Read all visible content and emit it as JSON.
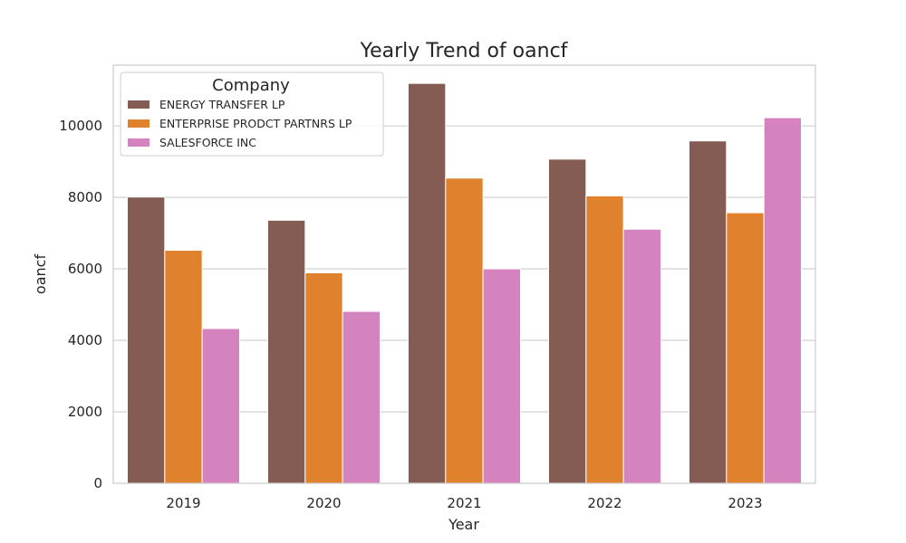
{
  "chart_data": {
    "type": "bar",
    "title": "Yearly Trend of oancf",
    "xlabel": "Year",
    "ylabel": "oancf",
    "categories": [
      "2019",
      "2020",
      "2021",
      "2022",
      "2023"
    ],
    "ylim": [
      0,
      11700
    ],
    "yticks": [
      0,
      2000,
      4000,
      6000,
      8000,
      10000
    ],
    "grid": true,
    "legend": {
      "title": "Company",
      "placement": "top-left"
    },
    "series": [
      {
        "name": "ENERGY TRANSFER LP",
        "color": "#845c53",
        "values": [
          8010,
          7360,
          11190,
          9070,
          9580
        ]
      },
      {
        "name": "ENTERPRISE PRODCT PARTNRS LP",
        "color": "#e0812e",
        "values": [
          6520,
          5890,
          8540,
          8040,
          7570
        ]
      },
      {
        "name": "SALESFORCE INC",
        "color": "#d583be",
        "values": [
          4330,
          4810,
          6000,
          7110,
          10230
        ]
      }
    ]
  }
}
